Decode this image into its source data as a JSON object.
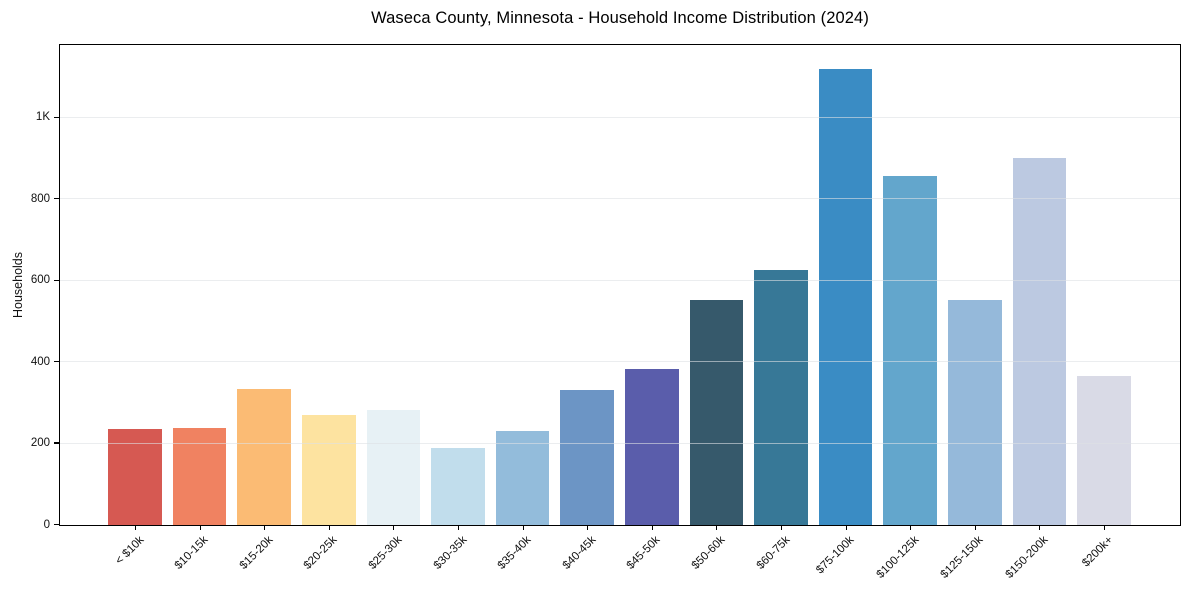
{
  "chart_data": {
    "type": "bar",
    "title": "Waseca County, Minnesota - Household Income Distribution (2024)",
    "xlabel": "",
    "ylabel": "Households",
    "categories": [
      "< $10k",
      "$10-15k",
      "$15-20k",
      "$20-25k",
      "$25-30k",
      "$30-35k",
      "$35-40k",
      "$40-45k",
      "$45-50k",
      "$50-60k",
      "$60-75k",
      "$75-100k",
      "$100-125k",
      "$125-150k",
      "$150-200k",
      "$200k+"
    ],
    "values": [
      235,
      237,
      333,
      271,
      283,
      190,
      231,
      331,
      382,
      553,
      626,
      1120,
      857,
      553,
      901,
      365
    ],
    "bar_colors": [
      "#d65952",
      "#f08261",
      "#fbbb74",
      "#fde3a0",
      "#e7f1f5",
      "#c1ddec",
      "#93bcdb",
      "#6c95c5",
      "#5a5dab",
      "#36596b",
      "#377897",
      "#3a8cc4",
      "#63a6cc",
      "#95b9da",
      "#bcc9e1",
      "#d9dae6"
    ],
    "ylim": [
      0,
      1176
    ],
    "yticks": {
      "values": [
        0,
        200,
        400,
        600,
        800,
        1000
      ],
      "labels": [
        "0",
        "200",
        "400",
        "600",
        "800",
        "1K"
      ]
    },
    "grid": true,
    "legend": false
  },
  "colors": {
    "background": "#ffffff",
    "spine": "#000000",
    "gridline": "#e9e9e9",
    "tick_text": "#111111"
  }
}
